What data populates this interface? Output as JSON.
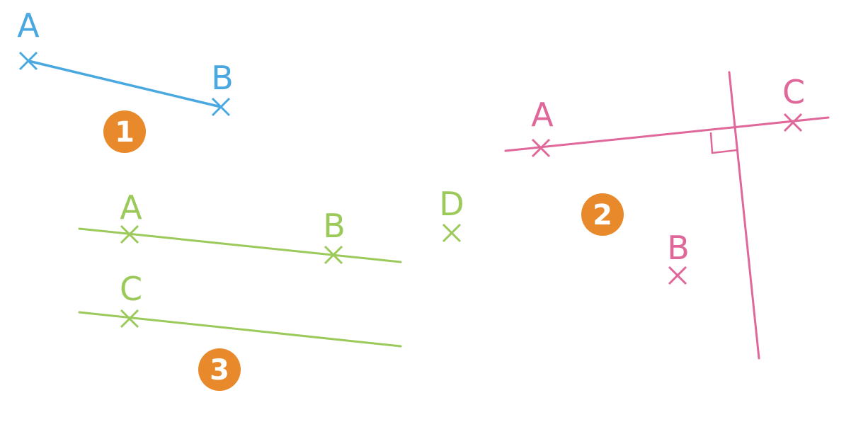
{
  "colors": {
    "figure_1": "#4aa8e0",
    "figure_2": "#e0679a",
    "figure_3": "#9bc95a",
    "badge": "#e8892b",
    "badge_text": "#ffffff"
  },
  "figures": [
    {
      "id": "figure-1",
      "badge": "1",
      "points": {
        "A": "A",
        "B": "B"
      }
    },
    {
      "id": "figure-2",
      "badge": "2",
      "points": {
        "A": "A",
        "B": "B",
        "C": "C"
      }
    },
    {
      "id": "figure-3",
      "badge": "3",
      "points": {
        "A": "A",
        "B": "B",
        "C": "C",
        "D": "D"
      }
    }
  ]
}
